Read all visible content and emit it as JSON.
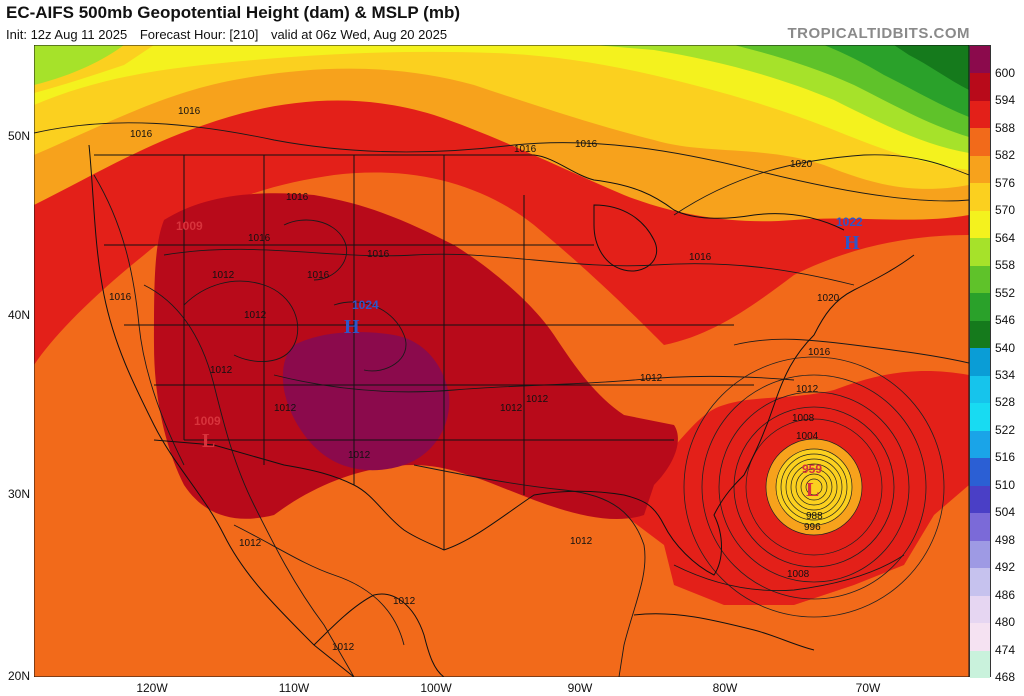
{
  "header": {
    "title": "EC-AIFS 500mb Geopotential Height (dam) & MSLP (mb)",
    "init": "Init: 12z Aug 11 2025",
    "forecast_hour": "Forecast Hour: [210]",
    "valid": "valid at 06z Wed, Aug 20 2025",
    "brand": "TROPICALTIDBITS.COM"
  },
  "axes": {
    "lat_labels": [
      "50N",
      "40N",
      "30N",
      "20N"
    ],
    "lon_labels": [
      "120W",
      "110W",
      "100W",
      "90W",
      "80W",
      "70W"
    ]
  },
  "colorbar": {
    "labels": [
      "600",
      "594",
      "588",
      "582",
      "576",
      "570",
      "564",
      "558",
      "552",
      "546",
      "540",
      "534",
      "528",
      "522",
      "516",
      "510",
      "504",
      "498",
      "492",
      "486",
      "480",
      "474",
      "468"
    ],
    "colors": [
      "#8b0a4c",
      "#b80a1a",
      "#e32019",
      "#f26a1a",
      "#f7a21c",
      "#fbd01f",
      "#f4f21e",
      "#a6e22a",
      "#5fc22a",
      "#2aa12a",
      "#157a1c",
      "#0a9dd6",
      "#16c4ec",
      "#18dbf2",
      "#1aa4e8",
      "#2b5fd4",
      "#4a3fc6",
      "#7b6ad8",
      "#9e9ae4",
      "#c6c2ee",
      "#e6d6f2",
      "#f5e2f2",
      "#c9f2dc"
    ]
  },
  "pressure_systems": [
    {
      "type": "H",
      "value": "1024",
      "color": "#2f56c8"
    },
    {
      "type": "H",
      "value": "1022",
      "color": "#2f56c8"
    },
    {
      "type": "L",
      "value": "1009",
      "color": "#d8333c"
    },
    {
      "type": "L",
      "value": "1009",
      "color": "#d8333c"
    },
    {
      "type": "L",
      "value": "959",
      "color": "#d8333c"
    }
  ],
  "isobar_labels": [
    "1016",
    "1016",
    "1016",
    "1016",
    "1016",
    "1016",
    "1016",
    "1016",
    "1016",
    "1016",
    "1012",
    "1012",
    "1012",
    "1012",
    "1012",
    "1012",
    "1012",
    "1012",
    "1012",
    "1012",
    "1012",
    "1012",
    "1020",
    "1020",
    "1016",
    "1012",
    "1008",
    "1004",
    "1008",
    "988",
    "996"
  ]
}
